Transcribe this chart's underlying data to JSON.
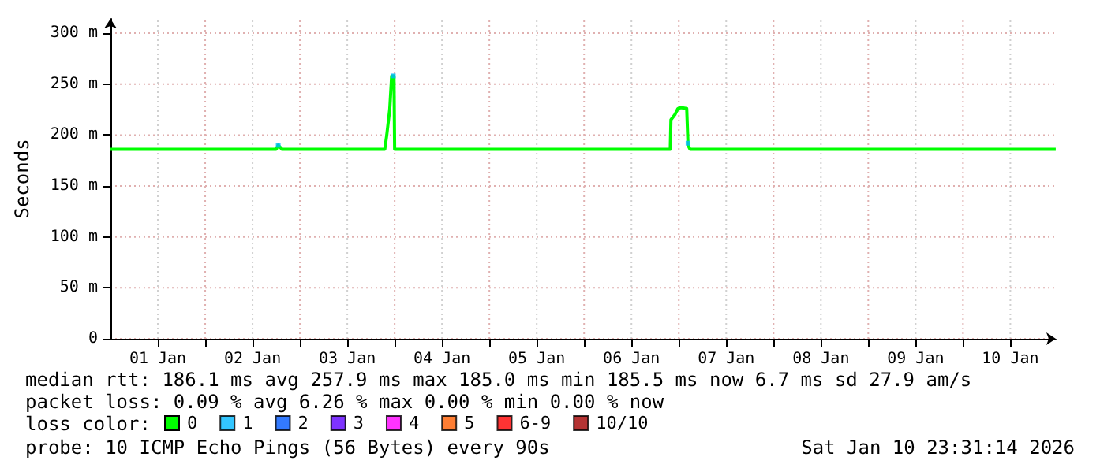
{
  "chart_data": {
    "type": "line",
    "ylabel": "Seconds",
    "legend_title": "loss color:",
    "legend": "bottom",
    "grid": true,
    "line_style": "solid",
    "xlim": [
      "2026-01-01T00:00",
      "2026-01-10T23:31"
    ],
    "xticks": [
      {
        "value": "2026-01-01T12:00",
        "label": "01 Jan"
      },
      {
        "value": "2026-01-02T00:00",
        "label": null
      },
      {
        "value": "2026-01-02T12:00",
        "label": "02 Jan"
      },
      {
        "value": "2026-01-03T00:00",
        "label": null
      },
      {
        "value": "2026-01-03T12:00",
        "label": "03 Jan"
      },
      {
        "value": "2026-01-04T00:00",
        "label": null
      },
      {
        "value": "2026-01-04T12:00",
        "label": "04 Jan"
      },
      {
        "value": "2026-01-05T00:00",
        "label": null
      },
      {
        "value": "2026-01-05T12:00",
        "label": "05 Jan"
      },
      {
        "value": "2026-01-06T00:00",
        "label": null
      },
      {
        "value": "2026-01-06T12:00",
        "label": "06 Jan"
      },
      {
        "value": "2026-01-07T00:00",
        "label": null
      },
      {
        "value": "2026-01-07T12:00",
        "label": "07 Jan"
      },
      {
        "value": "2026-01-08T00:00",
        "label": null
      },
      {
        "value": "2026-01-08T12:00",
        "label": "08 Jan"
      },
      {
        "value": "2026-01-09T00:00",
        "label": null
      },
      {
        "value": "2026-01-09T12:00",
        "label": "09 Jan"
      },
      {
        "value": "2026-01-10T00:00",
        "label": null
      },
      {
        "value": "2026-01-10T12:00",
        "label": "10 Jan"
      }
    ],
    "ylim": [
      0,
      314
    ],
    "yticks": [
      0,
      {
        "value": 50,
        "label": "50 m"
      },
      {
        "value": 100,
        "label": "100 m"
      },
      {
        "value": 150,
        "label": "150 m"
      },
      {
        "value": 200,
        "label": "200 m"
      },
      {
        "value": 250,
        "label": "250 m"
      },
      {
        "value": 300,
        "label": "300 m"
      }
    ],
    "series": [
      {
        "name": "0",
        "color": "#00ff00",
        "x": [
          "2026-01-01T00:00",
          "2026-01-01T12:00",
          "2026-01-02T00:00",
          "2026-01-02T12:00",
          "2026-01-02T18:00",
          "2026-01-02T18:30",
          "2026-01-02T19:30",
          "2026-01-03T06:00",
          "2026-01-03T18:00",
          "2026-01-03T21:30",
          "2026-01-03T22:00",
          "2026-01-03T22:45",
          "2026-01-03T23:15",
          "2026-01-03T23:50",
          "2026-01-04T00:00",
          "2026-01-04T12:00",
          "2026-01-05T00:00",
          "2026-01-05T12:00",
          "2026-01-06T00:00",
          "2026-01-06T12:00",
          "2026-01-06T21:50",
          "2026-01-06T22:00",
          "2026-01-06T23:00",
          "2026-01-06T23:45",
          "2026-01-07T00:30",
          "2026-01-07T02:00",
          "2026-01-07T02:20",
          "2026-01-07T02:50",
          "2026-01-07T12:00",
          "2026-01-08T00:00",
          "2026-01-08T12:00",
          "2026-01-09T00:00",
          "2026-01-09T12:00",
          "2026-01-10T00:00",
          "2026-01-10T12:00",
          "2026-01-10T23:30"
        ],
        "values": [
          186,
          186,
          186,
          186,
          186,
          190,
          186,
          186,
          186,
          186,
          200,
          225,
          258,
          258,
          186,
          186,
          186,
          186,
          186,
          186,
          186,
          215,
          220,
          226,
          227,
          226,
          190,
          186,
          186,
          186,
          186,
          186,
          186,
          186,
          186,
          186
        ]
      },
      {
        "name": "1",
        "type": "scatter",
        "color": "#00b8ff",
        "x": [
          "2026-01-02T18:30",
          "2026-01-03T23:40",
          "2026-01-07T02:20"
        ],
        "values": [
          190,
          258,
          192
        ]
      },
      {
        "name": "2",
        "type": "scatter",
        "color": "#0059ff"
      },
      {
        "name": "3",
        "type": "scatter",
        "color": "#5e00ff"
      },
      {
        "name": "4",
        "type": "scatter",
        "color": "#ff00ff"
      },
      {
        "name": "5",
        "type": "scatter",
        "color": "#ff5e00"
      },
      {
        "name": "6-9",
        "type": "scatter",
        "color": "#ff0000"
      },
      {
        "name": "10/10",
        "type": "scatter",
        "color": "#a10000"
      }
    ],
    "annotations": [
      "median rtt: 186.1 ms avg 257.9 ms max 185.0 ms min 185.5 ms now 6.7 ms sd 27.9 am/s",
      "packet loss: 0.09 % avg 6.26 % max 0.00 % min 0.00 % now",
      "probe: 10 ICMP Echo Pings (56 Bytes) every 90s",
      "Sat Jan 10 23:31:14 2026"
    ]
  }
}
